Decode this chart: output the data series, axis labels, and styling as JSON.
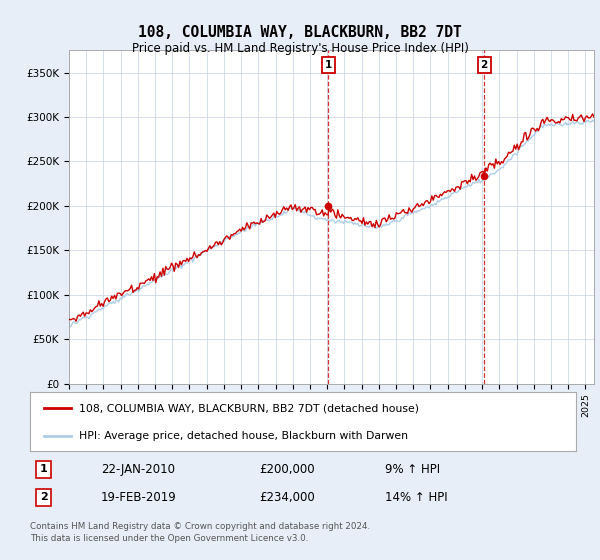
{
  "title": "108, COLUMBIA WAY, BLACKBURN, BB2 7DT",
  "subtitle": "Price paid vs. HM Land Registry's House Price Index (HPI)",
  "ylabel_ticks": [
    "£0",
    "£50K",
    "£100K",
    "£150K",
    "£200K",
    "£250K",
    "£300K",
    "£350K"
  ],
  "ytick_values": [
    0,
    50000,
    100000,
    150000,
    200000,
    250000,
    300000,
    350000
  ],
  "ylim": [
    0,
    375000
  ],
  "xlim_start": 1995.0,
  "xlim_end": 2025.5,
  "hpi_color": "#aecde8",
  "price_color": "#cc0000",
  "marker1_x": 2010.05,
  "marker1_y": 200000,
  "marker2_x": 2019.12,
  "marker2_y": 234000,
  "annotation1_date": "22-JAN-2010",
  "annotation1_price": "£200,000",
  "annotation1_hpi": "9% ↑ HPI",
  "annotation2_date": "19-FEB-2019",
  "annotation2_price": "£234,000",
  "annotation2_hpi": "14% ↑ HPI",
  "legend_line1": "108, COLUMBIA WAY, BLACKBURN, BB2 7DT (detached house)",
  "legend_line2": "HPI: Average price, detached house, Blackburn with Darwen",
  "footer": "Contains HM Land Registry data © Crown copyright and database right 2024.\nThis data is licensed under the Open Government Licence v3.0.",
  "background_color": "#e8eef8",
  "plot_bg_color": "#ffffff",
  "grid_color": "#d0d8e8"
}
